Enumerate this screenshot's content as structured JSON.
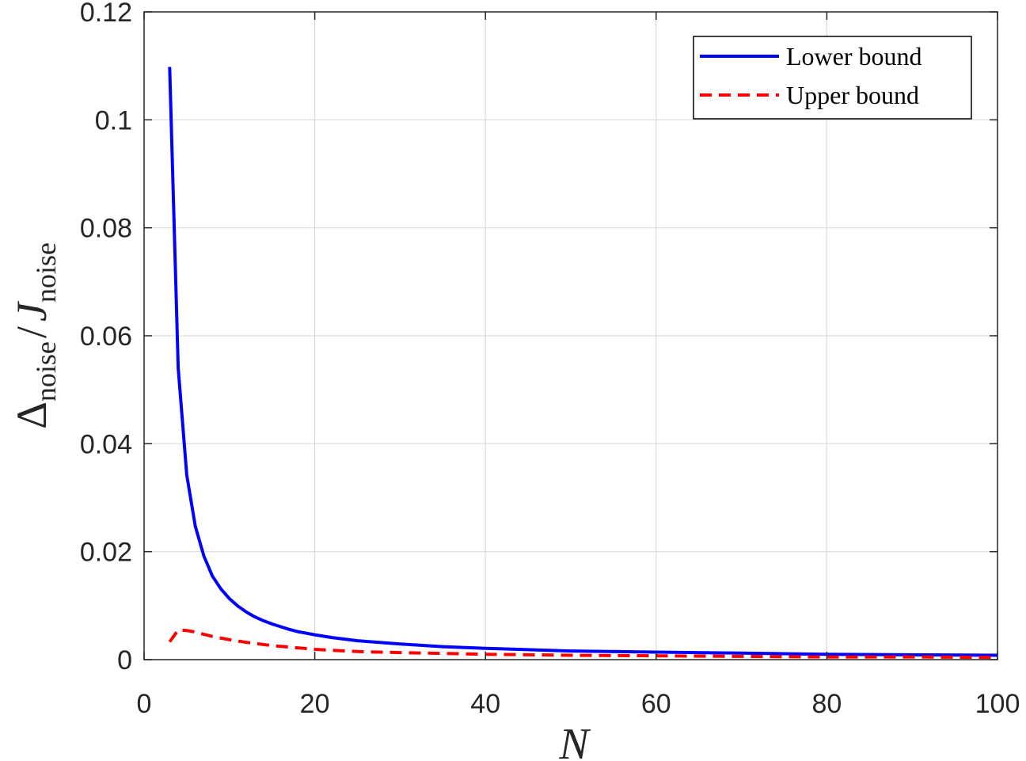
{
  "chart_data": {
    "type": "line",
    "xlabel": "N",
    "ylabel": {
      "main": "Δ",
      "sub1": "noise",
      "slash": "/",
      "italic": "J",
      "sub2": "noise"
    },
    "xlim": [
      0,
      100
    ],
    "ylim": [
      0,
      0.12
    ],
    "x_ticks": [
      0,
      20,
      40,
      60,
      80,
      100
    ],
    "x_tick_labels": [
      "0",
      "20",
      "40",
      "60",
      "80",
      "100"
    ],
    "y_ticks": [
      0,
      0.02,
      0.04,
      0.06,
      0.08,
      0.1,
      0.12
    ],
    "y_tick_labels": [
      "0",
      "0.02",
      "0.04",
      "0.06",
      "0.08",
      "0.1",
      "0.12"
    ],
    "grid": true,
    "legend_position": "top-right",
    "series": [
      {
        "name": "Lower bound",
        "color": "#0000ff",
        "style": "solid",
        "x": [
          3,
          4,
          5,
          6,
          7,
          8,
          9,
          10,
          11,
          12,
          13,
          14,
          15,
          16,
          17,
          18,
          20,
          22,
          25,
          30,
          35,
          40,
          50,
          60,
          70,
          80,
          90,
          100
        ],
        "y": [
          0.1098,
          0.054,
          0.0342,
          0.0247,
          0.0192,
          0.0155,
          0.0131,
          0.0113,
          0.0099,
          0.0088,
          0.0079,
          0.0072,
          0.0066,
          0.0061,
          0.0056,
          0.0052,
          0.0046,
          0.0041,
          0.0035,
          0.0029,
          0.0024,
          0.0021,
          0.0016,
          0.0014,
          0.0012,
          0.001,
          0.0009,
          0.0008
        ]
      },
      {
        "name": "Upper bound",
        "color": "#ff0000",
        "style": "dashed",
        "x": [
          3,
          4,
          5,
          6,
          7,
          8,
          10,
          12,
          15,
          20,
          25,
          30,
          40,
          50,
          60,
          70,
          80,
          90,
          100
        ],
        "y": [
          0.0033,
          0.0055,
          0.0054,
          0.0051,
          0.0047,
          0.0043,
          0.0037,
          0.0032,
          0.0026,
          0.0019,
          0.0015,
          0.0013,
          0.001,
          0.0008,
          0.0007,
          0.0006,
          0.0005,
          0.0005,
          0.0004
        ]
      }
    ]
  }
}
